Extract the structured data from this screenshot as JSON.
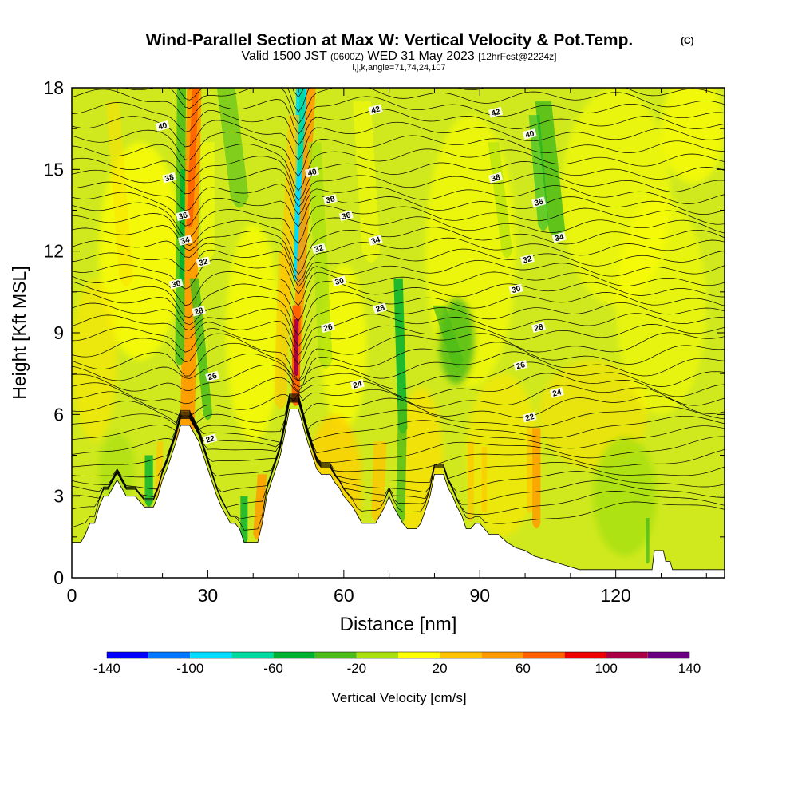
{
  "header": {
    "title": "Wind-Parallel Section at Max W: Vertical Velocity & Pot.Temp.",
    "copyright": "(C)",
    "valid_prefix": "Valid 1500 JST",
    "valid_utc": "(0600Z)",
    "valid_date": "WED 31 May 2023",
    "forecast": "[12hrFcst@2224z]",
    "indices": "i,j,k,angle=71,74,24,107"
  },
  "chart_data": {
    "type": "heatmap",
    "title": "Wind-Parallel Section at Max W: Vertical Velocity & Pot.Temp.",
    "xlabel": "Distance [nm]",
    "ylabel": "Height [Kft MSL]",
    "xlim": [
      0,
      144
    ],
    "ylim": [
      0,
      18
    ],
    "x_ticks": [
      0,
      30,
      60,
      90,
      120
    ],
    "y_ticks": [
      0,
      3,
      6,
      9,
      12,
      15,
      18
    ],
    "colorbar": {
      "label": "Vertical Velocity [cm/s]",
      "ticks": [
        -140,
        -100,
        -60,
        -20,
        20,
        60,
        100,
        140
      ],
      "bins": [
        -140,
        -120,
        -100,
        -80,
        -60,
        -40,
        -20,
        0,
        20,
        40,
        60,
        80,
        100,
        120,
        140
      ],
      "colors": [
        "#0000ff",
        "#0077ff",
        "#00ddff",
        "#00d9a0",
        "#00b030",
        "#4cbc1a",
        "#a8e010",
        "#ffff00",
        "#ffc400",
        "#ff9b00",
        "#ff6000",
        "#ee0000",
        "#aa0044",
        "#6a0080"
      ]
    },
    "contour_field": "Potential Temperature",
    "contour_labels": [
      {
        "x": 20,
        "y": 16.6,
        "v": "40"
      },
      {
        "x": 21.5,
        "y": 14.7,
        "v": "38"
      },
      {
        "x": 24.5,
        "y": 13.3,
        "v": "36"
      },
      {
        "x": 25,
        "y": 12.4,
        "v": "34"
      },
      {
        "x": 29,
        "y": 11.6,
        "v": "32"
      },
      {
        "x": 23,
        "y": 10.8,
        "v": "30"
      },
      {
        "x": 28,
        "y": 9.8,
        "v": "28"
      },
      {
        "x": 31,
        "y": 7.4,
        "v": "26"
      },
      {
        "x": 30.5,
        "y": 5.1,
        "v": "22"
      },
      {
        "x": 67,
        "y": 17.2,
        "v": "42"
      },
      {
        "x": 93.5,
        "y": 17.1,
        "v": "42"
      },
      {
        "x": 101,
        "y": 16.3,
        "v": "40"
      },
      {
        "x": 53,
        "y": 14.9,
        "v": "40"
      },
      {
        "x": 57,
        "y": 13.9,
        "v": "38"
      },
      {
        "x": 93.5,
        "y": 14.7,
        "v": "38"
      },
      {
        "x": 60.5,
        "y": 13.3,
        "v": "36"
      },
      {
        "x": 103,
        "y": 13.8,
        "v": "36"
      },
      {
        "x": 67,
        "y": 12.4,
        "v": "34"
      },
      {
        "x": 107.5,
        "y": 12.5,
        "v": "34"
      },
      {
        "x": 54.5,
        "y": 12.1,
        "v": "32"
      },
      {
        "x": 100.5,
        "y": 11.7,
        "v": "32"
      },
      {
        "x": 59,
        "y": 10.9,
        "v": "30"
      },
      {
        "x": 98,
        "y": 10.6,
        "v": "30"
      },
      {
        "x": 68,
        "y": 9.9,
        "v": "28"
      },
      {
        "x": 103,
        "y": 9.2,
        "v": "28"
      },
      {
        "x": 56.5,
        "y": 9.2,
        "v": "26"
      },
      {
        "x": 99,
        "y": 7.8,
        "v": "26"
      },
      {
        "x": 63,
        "y": 7.1,
        "v": "24"
      },
      {
        "x": 107,
        "y": 6.8,
        "v": "24"
      },
      {
        "x": 101,
        "y": 5.9,
        "v": "22"
      }
    ]
  }
}
